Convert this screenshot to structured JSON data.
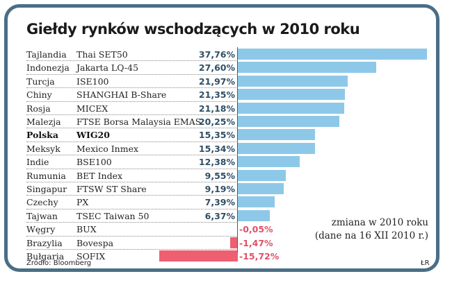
{
  "chart_data": {
    "type": "bar",
    "orientation": "horizontal",
    "title": "Giełdy rynków wschodzących w 2010 roku",
    "categories": [
      "Tajlandia",
      "Indonezja",
      "Turcja",
      "Chiny",
      "Rosja",
      "Malezja",
      "Polska",
      "Meksyk",
      "Indie",
      "Rumunia",
      "Singapur",
      "Czechy",
      "Tajwan",
      "Węgry",
      "Brazylia",
      "Bułgaria"
    ],
    "indices": [
      "Thai SET50",
      "Jakarta LQ-45",
      "ISE100",
      "SHANGHAI B-Share",
      "MICEX",
      "FTSE Borsa Malaysia EMAS",
      "WIG20",
      "Mexico Inmex",
      "BSE100",
      "BET Index",
      "FTSW ST Share",
      "PX",
      "TSEC Taiwan 50",
      "BUX",
      "Bovespa",
      "SOFIX"
    ],
    "values": [
      37.76,
      27.6,
      21.97,
      21.35,
      21.18,
      20.25,
      15.35,
      15.34,
      12.38,
      9.55,
      9.19,
      7.39,
      6.37,
      -0.05,
      -1.47,
      -15.72
    ],
    "labels": [
      "37,76%",
      "27,60%",
      "21,97%",
      "21,35%",
      "21,18%",
      "20,25%",
      "15,35%",
      "15,34%",
      "12,38%",
      "9,55%",
      "9,19%",
      "7,39%",
      "6,37%",
      "-0,05%",
      "-1,47%",
      "-15,72%"
    ],
    "highlight": "Polska",
    "colors": {
      "positive": "#8ec8e8",
      "negative": "#ef5f72",
      "frame": "#4a6e86",
      "value_text": "#2f4f66",
      "negative_text": "#e05068"
    },
    "unit": "%"
  },
  "legend_note": {
    "line1": "zmiana w 2010 roku",
    "line2": "(dane na 16 XII 2010 r.)"
  },
  "source": "Źródło: Bloomberg",
  "author": "ŁR"
}
